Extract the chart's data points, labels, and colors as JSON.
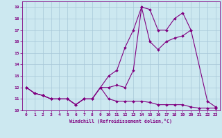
{
  "xlabel": "Windchill (Refroidissement éolien,°C)",
  "bg_color": "#cce8f0",
  "line_color": "#800080",
  "grid_color": "#a8c8d8",
  "xlim": [
    -0.5,
    23.5
  ],
  "ylim": [
    10,
    19.5
  ],
  "yticks": [
    10,
    11,
    12,
    13,
    14,
    15,
    16,
    17,
    18,
    19
  ],
  "xticks": [
    0,
    1,
    2,
    3,
    4,
    5,
    6,
    7,
    8,
    9,
    10,
    11,
    12,
    13,
    14,
    15,
    16,
    17,
    18,
    19,
    20,
    21,
    22,
    23
  ],
  "line1_x": [
    0,
    1,
    2,
    3,
    4,
    5,
    6,
    7,
    8,
    9,
    10,
    11,
    12,
    13,
    14,
    15,
    16,
    17,
    18,
    19,
    20,
    22,
    23
  ],
  "line1_y": [
    12.0,
    11.5,
    11.3,
    11.0,
    11.0,
    11.0,
    10.5,
    11.0,
    11.0,
    12.0,
    12.0,
    12.2,
    12.0,
    13.5,
    19.0,
    18.8,
    17.0,
    17.0,
    18.0,
    18.5,
    17.0,
    10.8,
    10.3
  ],
  "line2_x": [
    0,
    1,
    2,
    3,
    4,
    5,
    6,
    7,
    8,
    9,
    10,
    11,
    12,
    13,
    14,
    15,
    16,
    17,
    18,
    19,
    20,
    21,
    22,
    23
  ],
  "line2_y": [
    12.0,
    11.5,
    11.3,
    11.0,
    11.0,
    11.0,
    10.5,
    11.0,
    11.0,
    12.0,
    11.0,
    10.8,
    10.8,
    10.8,
    10.8,
    10.7,
    10.5,
    10.5,
    10.5,
    10.5,
    10.3,
    10.2,
    10.2,
    10.2
  ],
  "line3_x": [
    0,
    1,
    2,
    3,
    4,
    5,
    6,
    7,
    8,
    9,
    10,
    11,
    12,
    13,
    14,
    15,
    16,
    17,
    18,
    19,
    20
  ],
  "line3_y": [
    12.0,
    11.5,
    11.3,
    11.0,
    11.0,
    11.0,
    10.5,
    11.0,
    11.0,
    12.0,
    13.0,
    13.5,
    15.5,
    17.0,
    19.0,
    16.0,
    15.3,
    16.0,
    16.3,
    16.5,
    17.0
  ]
}
